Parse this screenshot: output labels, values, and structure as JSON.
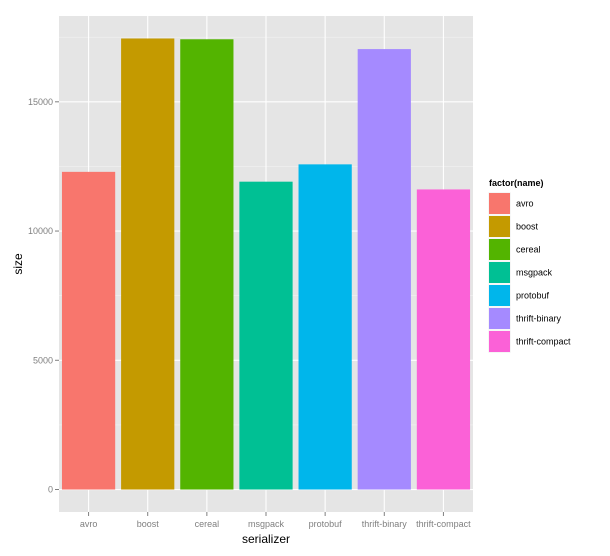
{
  "chart_data": {
    "type": "bar",
    "xlabel": "serializer",
    "ylabel": "size",
    "categories": [
      "avro",
      "boost",
      "cereal",
      "msgpack",
      "protobuf",
      "thrift-binary",
      "thrift-compact"
    ],
    "values": [
      12290,
      17450,
      17420,
      11910,
      12580,
      17040,
      11610
    ],
    "colors": [
      "#F8766D",
      "#C49A00",
      "#53B400",
      "#00C094",
      "#00B6EB",
      "#A58AFF",
      "#FB61D7"
    ],
    "y_ticks": [
      0,
      5000,
      10000,
      15000
    ],
    "y_tick_labels": [
      "0",
      "5000",
      "10000",
      "15000"
    ],
    "ylim": [
      -870,
      18320
    ],
    "grid": true,
    "panel_background": "#E5E5E5",
    "legend": {
      "title": "factor(name)",
      "placement": "right",
      "entries": [
        "avro",
        "boost",
        "cereal",
        "msgpack",
        "protobuf",
        "thrift-binary",
        "thrift-compact"
      ]
    }
  }
}
